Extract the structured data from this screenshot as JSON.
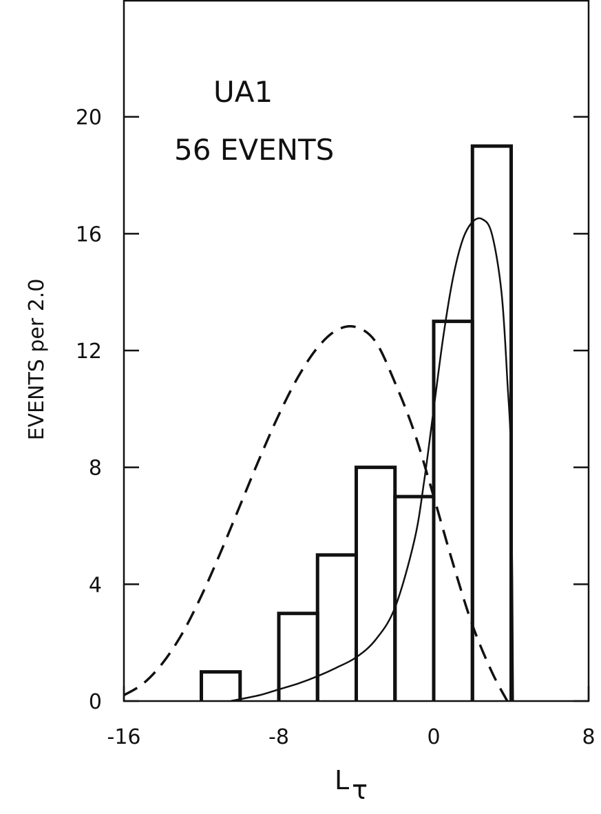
{
  "colors": {
    "ink": "#111111",
    "background": "#ffffff"
  },
  "chart_data": {
    "type": "bar",
    "title": "",
    "xlabel": "L",
    "xlabel_subscript": "τ",
    "ylabel": "EVENTS per 2.0",
    "xlim": [
      -16,
      8
    ],
    "ylim": [
      0,
      24
    ],
    "grid": false,
    "x_ticks": [
      {
        "value": -16,
        "label": "-16"
      },
      {
        "value": -8,
        "label": "-8"
      },
      {
        "value": 0,
        "label": "0"
      },
      {
        "value": 8,
        "label": "8"
      }
    ],
    "y_ticks": [
      {
        "value": 0,
        "label": "0"
      },
      {
        "value": 4,
        "label": "4"
      },
      {
        "value": 8,
        "label": "8"
      },
      {
        "value": 12,
        "label": "12"
      },
      {
        "value": 16,
        "label": "16"
      },
      {
        "value": 20,
        "label": "20"
      }
    ],
    "annotations": [
      {
        "text": "UA1"
      },
      {
        "text": "56 EVENTS"
      }
    ],
    "histogram": {
      "bin_width": 2.0,
      "bins": [
        {
          "x0": -12,
          "x1": -10,
          "count": 1
        },
        {
          "x0": -10,
          "x1": -8,
          "count": 0
        },
        {
          "x0": -8,
          "x1": -6,
          "count": 3
        },
        {
          "x0": -6,
          "x1": -4,
          "count": 5
        },
        {
          "x0": -4,
          "x1": -2,
          "count": 8
        },
        {
          "x0": -2,
          "x1": 0,
          "count": 7
        },
        {
          "x0": 0,
          "x1": 2,
          "count": 13
        },
        {
          "x0": 2,
          "x1": 4,
          "count": 19
        }
      ]
    },
    "curves": [
      {
        "style": "solid",
        "points": [
          [
            -10.5,
            0
          ],
          [
            -9,
            0.2
          ],
          [
            -8,
            0.4
          ],
          [
            -7,
            0.6
          ],
          [
            -6,
            0.85
          ],
          [
            -5,
            1.15
          ],
          [
            -4,
            1.5
          ],
          [
            -3,
            2.1
          ],
          [
            -2,
            3.2
          ],
          [
            -1,
            5.5
          ],
          [
            -0.5,
            7.5
          ],
          [
            0,
            10
          ],
          [
            0.5,
            12.5
          ],
          [
            1,
            14.5
          ],
          [
            1.5,
            15.8
          ],
          [
            2,
            16.4
          ],
          [
            2.5,
            16.5
          ],
          [
            3,
            16
          ],
          [
            3.5,
            14
          ],
          [
            3.8,
            11
          ],
          [
            4,
            8
          ],
          [
            4.1,
            0
          ]
        ]
      },
      {
        "style": "dashed",
        "points": [
          [
            -16,
            0.2
          ],
          [
            -15,
            0.6
          ],
          [
            -14,
            1.3
          ],
          [
            -13,
            2.3
          ],
          [
            -12,
            3.6
          ],
          [
            -11,
            5.1
          ],
          [
            -10,
            6.7
          ],
          [
            -9,
            8.3
          ],
          [
            -8,
            9.8
          ],
          [
            -7,
            11.1
          ],
          [
            -6,
            12.1
          ],
          [
            -5,
            12.7
          ],
          [
            -4,
            12.8
          ],
          [
            -3,
            12.3
          ],
          [
            -2,
            10.9
          ],
          [
            -1,
            9.2
          ],
          [
            0,
            7.0
          ],
          [
            1,
            4.7
          ],
          [
            2,
            2.6
          ],
          [
            3,
            1.0
          ],
          [
            3.8,
            0
          ]
        ]
      }
    ]
  }
}
